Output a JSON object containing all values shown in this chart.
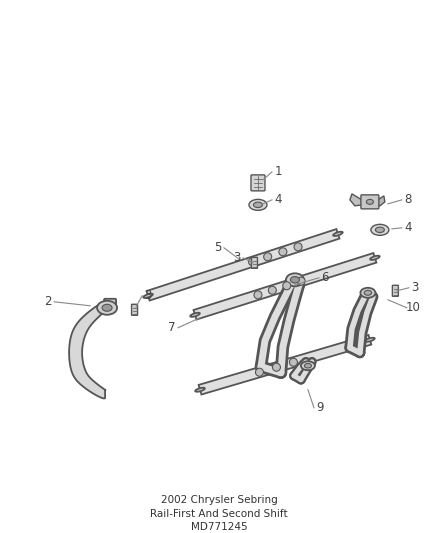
{
  "title": "2002 Chrysler Sebring",
  "subtitle": "Rail-First And Second Shift",
  "part_number": "MD771245",
  "bg_color": "#ffffff",
  "fig_width": 4.38,
  "fig_height": 5.33,
  "dpi": 100,
  "line_color": "#555555",
  "label_color": "#444444",
  "leader_color": "#888888"
}
